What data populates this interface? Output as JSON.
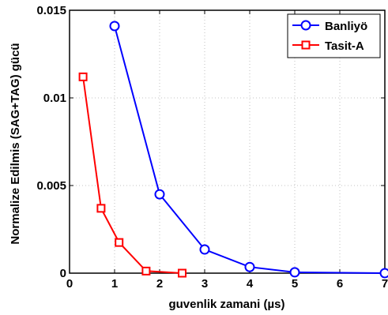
{
  "chart_data": {
    "type": "line",
    "title": "",
    "xlabel": "guvenlik zamani (µs)",
    "ylabel": "Normalize Edilmis (SAG+TAG) gücü",
    "xlim": [
      0,
      7
    ],
    "ylim": [
      0,
      0.015
    ],
    "x_ticks": [
      "0",
      "1",
      "2",
      "3",
      "4",
      "5",
      "6",
      "7"
    ],
    "y_ticks": [
      "0",
      "0.005",
      "0.01",
      "0.015"
    ],
    "grid": true,
    "legend_position": "top-right",
    "series": [
      {
        "name": "Banliyö",
        "color": "#0000ff",
        "marker": "circle",
        "x": [
          1,
          2,
          3,
          4,
          5,
          7
        ],
        "y": [
          0.0141,
          0.0045,
          0.00135,
          0.00035,
          5e-05,
          0.0
        ]
      },
      {
        "name": "Tasit-A",
        "color": "#ff0000",
        "marker": "square",
        "x": [
          0.3,
          0.7,
          1.1,
          1.7,
          2.5
        ],
        "y": [
          0.0112,
          0.0037,
          0.00175,
          0.00012,
          0.0
        ]
      }
    ]
  }
}
